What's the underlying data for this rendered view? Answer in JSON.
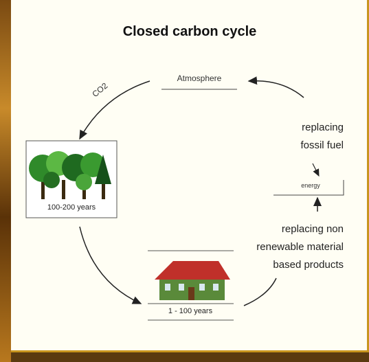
{
  "title": "Closed carbon cycle",
  "nodes": [
    {
      "label": "Atmosphere"
    },
    {
      "label": "CO2"
    },
    {
      "label": "100-200 years"
    },
    {
      "label": "1 - 100 years"
    },
    {
      "label": "energy"
    }
  ],
  "notes": [
    {
      "lines": [
        "replacing",
        "fossil fuel"
      ]
    },
    {
      "lines": [
        "replacing non",
        "renewable material",
        "based products"
      ]
    }
  ]
}
